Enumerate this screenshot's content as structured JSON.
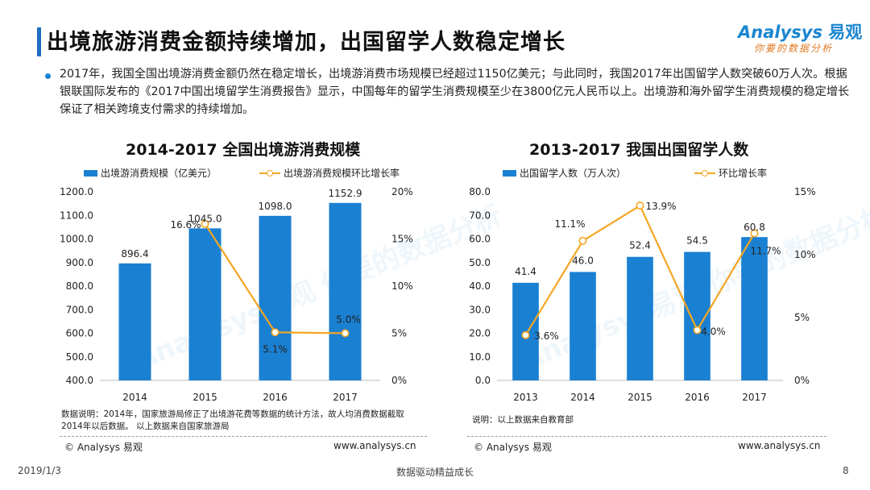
{
  "header": {
    "title": "出境旅游消费金额持续增加，出国留学人数稳定增长",
    "logo_text": "nalysys",
    "logo_prefix": "A",
    "logo_cn": "易观",
    "logo_slogan": "你要的数据分析"
  },
  "summary": "2017年，我国全国出境游消费金额仍然在稳定增长，出境游消费市场规模已经超过1150亿美元；与此同时，我国2017年出国留学人数突破60万人次。根据银联国际发布的《2017中国出境留学生消费报告》显示，中国每年的留学生消费规模至少在3800亿元人民币以上。出境游和海外留学生消费规模的稳定增长保证了相关跨境支付需求的持续增加。",
  "watermark": "Analysys易观 你要的数据分析",
  "chart_data": [
    {
      "type": "bar",
      "title": "2014-2017 全国出境游消费规模",
      "categories": [
        "2014",
        "2015",
        "2016",
        "2017"
      ],
      "series": [
        {
          "name": "出境游消费规模（亿美元）",
          "type": "bar",
          "axis": "left",
          "values": [
            896.4,
            1045.0,
            1098.0,
            1152.9
          ],
          "labels": [
            "896.4",
            "1045.0",
            "1098.0",
            "1152.9"
          ]
        },
        {
          "name": "出境游消费规模环比增长率",
          "type": "line",
          "axis": "right",
          "values": [
            16.6,
            5.1,
            5.0
          ],
          "x": [
            "2015",
            "2016",
            "2017"
          ],
          "labels": [
            "16.6%",
            "5.1%",
            "5.0%"
          ]
        }
      ],
      "ylim_left": [
        400,
        1200
      ],
      "yticks_left": [
        "400.0",
        "500.0",
        "600.0",
        "700.0",
        "800.0",
        "900.0",
        "1000.0",
        "1100.0",
        "1200.0"
      ],
      "ylim_right": [
        0,
        20
      ],
      "yticks_right": [
        "0%",
        "5%",
        "10%",
        "15%",
        "20%"
      ],
      "note": "数据说明：2014年，国家旅游局修正了出境游花费等数据的统计方法，故人均消费数据截取2014年以后数据。 以上数据来自国家旅游局",
      "colors": {
        "bar": "#1a80d2",
        "line": "#f5a623"
      }
    },
    {
      "type": "bar",
      "title": "2013-2017 我国出国留学人数",
      "categories": [
        "2013",
        "2014",
        "2015",
        "2016",
        "2017"
      ],
      "series": [
        {
          "name": "出国留学人数（万人次）",
          "type": "bar",
          "axis": "left",
          "values": [
            41.4,
            46.0,
            52.4,
            54.5,
            60.8
          ],
          "labels": [
            "41.4",
            "46.0",
            "52.4",
            "54.5",
            "60.8"
          ]
        },
        {
          "name": "环比增长率",
          "type": "line",
          "axis": "right",
          "values": [
            3.6,
            11.1,
            13.9,
            4.0,
            11.7
          ],
          "labels": [
            "3.6%",
            "11.1%",
            "13.9%",
            "4.0%",
            "11.7%"
          ]
        }
      ],
      "ylim_left": [
        0,
        80
      ],
      "yticks_left": [
        "0.0",
        "10.0",
        "20.0",
        "30.0",
        "40.0",
        "50.0",
        "60.0",
        "70.0",
        "80.0"
      ],
      "ylim_right": [
        0,
        15
      ],
      "yticks_right": [
        "0%",
        "5%",
        "10%",
        "15%"
      ],
      "note": "说明：以上数据来自教育部",
      "colors": {
        "bar": "#1a80d2",
        "line": "#f5a623"
      }
    }
  ],
  "footer": {
    "left_copyright": "© Analysys 易观",
    "left_url": "www.analysys.cn",
    "right_copyright": "© Analysys 易观",
    "right_url": "www.analysys.cn"
  },
  "page_footer": {
    "date": "2019/1/3",
    "center": "数据驱动精益成长",
    "page_number": "8"
  }
}
